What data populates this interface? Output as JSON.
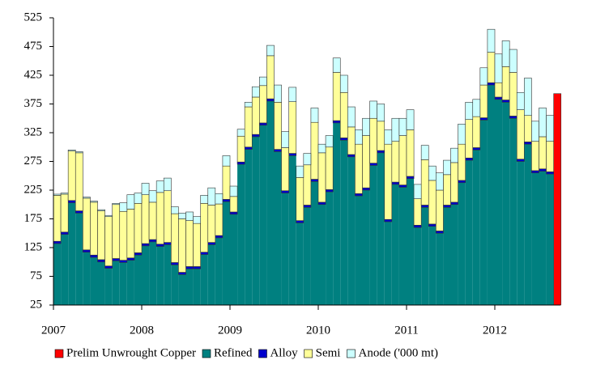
{
  "chart_data": {
    "type": "stacked-bar",
    "categories": [
      "2007",
      null,
      null,
      null,
      null,
      null,
      null,
      null,
      null,
      null,
      null,
      null,
      "2008",
      null,
      null,
      null,
      null,
      null,
      null,
      null,
      null,
      null,
      null,
      null,
      "2009",
      null,
      null,
      null,
      null,
      null,
      null,
      null,
      null,
      null,
      null,
      null,
      "2010",
      null,
      null,
      null,
      null,
      null,
      null,
      null,
      null,
      null,
      null,
      null,
      "2011",
      null,
      null,
      null,
      null,
      null,
      null,
      null,
      null,
      null,
      null,
      null,
      "2012",
      null,
      null,
      null,
      null,
      null,
      null,
      null,
      null
    ],
    "series": [
      {
        "name": "Prelim Unwrought Copper",
        "color": "#ff0000",
        "values": [
          null,
          null,
          null,
          null,
          null,
          null,
          null,
          null,
          null,
          null,
          null,
          null,
          null,
          null,
          null,
          null,
          null,
          null,
          null,
          null,
          null,
          null,
          null,
          null,
          null,
          null,
          null,
          null,
          null,
          null,
          null,
          null,
          null,
          null,
          null,
          null,
          null,
          null,
          null,
          null,
          null,
          null,
          null,
          null,
          null,
          null,
          null,
          null,
          null,
          null,
          null,
          null,
          null,
          null,
          null,
          null,
          null,
          null,
          null,
          null,
          null,
          null,
          null,
          null,
          null,
          null,
          null,
          null,
          393
        ]
      },
      {
        "name": "Refined",
        "color": "#008080",
        "values": [
          132,
          148,
          203,
          185,
          117,
          108,
          100,
          89,
          102,
          99,
          103,
          112,
          128,
          135,
          127,
          130,
          95,
          78,
          88,
          88,
          113,
          130,
          142,
          205,
          183,
          270,
          296,
          318,
          338,
          380,
          292,
          220,
          285,
          168,
          195,
          240,
          200,
          222,
          342,
          312,
          283,
          215,
          225,
          268,
          290,
          170,
          235,
          230,
          245,
          160,
          195,
          162,
          150,
          195,
          200,
          238,
          277,
          295,
          347,
          408,
          383,
          378,
          350,
          275,
          305,
          255,
          258,
          253,
          null
        ]
      },
      {
        "name": "Alloy",
        "color": "#0000cc",
        "values": [
          4,
          4,
          4,
          4,
          4,
          4,
          4,
          4,
          4,
          4,
          4,
          4,
          4,
          4,
          4,
          4,
          4,
          4,
          4,
          4,
          4,
          4,
          4,
          4,
          4,
          4,
          4,
          4,
          4,
          4,
          4,
          4,
          4,
          4,
          4,
          4,
          4,
          4,
          4,
          4,
          4,
          4,
          4,
          4,
          4,
          4,
          4,
          4,
          4,
          4,
          4,
          4,
          4,
          4,
          4,
          4,
          4,
          4,
          4,
          4,
          4,
          4,
          4,
          4,
          4,
          4,
          4,
          4,
          null
        ]
      },
      {
        "name": "Semi",
        "color": "#ffff99",
        "values": [
          80,
          66,
          86,
          101,
          90,
          92,
          85,
          86,
          94,
          85,
          85,
          86,
          85,
          65,
          90,
          90,
          85,
          93,
          80,
          75,
          85,
          65,
          55,
          58,
          27,
          45,
          70,
          65,
          65,
          75,
          82,
          75,
          90,
          75,
          70,
          99,
          86,
          74,
          84,
          79,
          48,
          86,
          91,
          78,
          51,
          131,
          71,
          86,
          81,
          46,
          79,
          76,
          71,
          53,
          69,
          63,
          67,
          54,
          57,
          53,
          25,
          58,
          76,
          86,
          46,
          51,
          56,
          53,
          null
        ]
      },
      {
        "name": "Anode ('000 mt)",
        "color": "#ccffff",
        "values": [
          2,
          2,
          2,
          2,
          2,
          2,
          2,
          2,
          2,
          15,
          25,
          18,
          20,
          20,
          20,
          22,
          12,
          10,
          15,
          12,
          14,
          30,
          18,
          18,
          18,
          12,
          8,
          18,
          15,
          18,
          30,
          28,
          25,
          20,
          20,
          25,
          15,
          20,
          25,
          30,
          35,
          25,
          30,
          30,
          30,
          25,
          40,
          30,
          35,
          25,
          25,
          25,
          30,
          25,
          25,
          35,
          30,
          30,
          30,
          40,
          50,
          45,
          40,
          30,
          65,
          35,
          50,
          45,
          null
        ]
      }
    ],
    "ylim": [
      25,
      525
    ],
    "yticks": [
      25,
      75,
      125,
      175,
      225,
      275,
      325,
      375,
      425,
      475,
      525
    ]
  }
}
